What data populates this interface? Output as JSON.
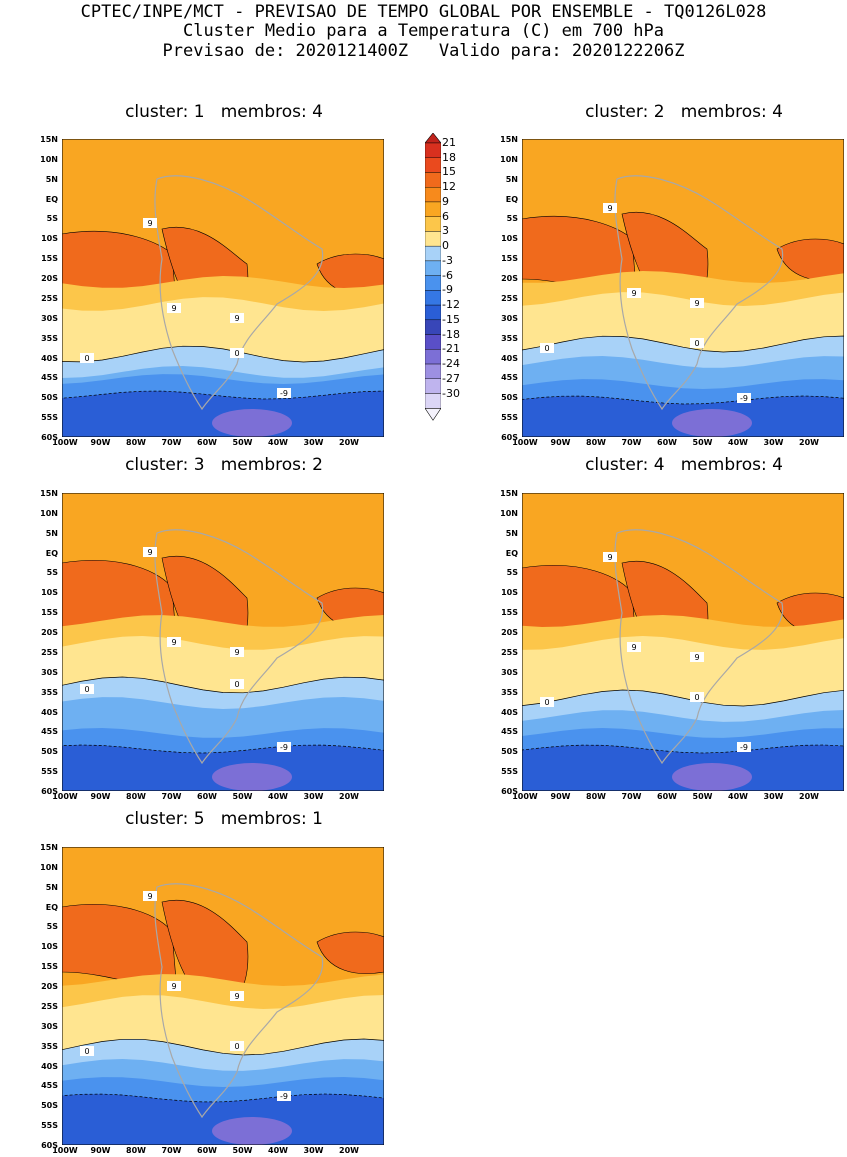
{
  "header": {
    "line1": "CPTEC/INPE/MCT - PREVISAO DE TEMPO GLOBAL POR ENSEMBLE - TQ0126L028",
    "line2": "Cluster Medio para a Temperatura (C) em 700 hPa",
    "line3": "Previsao de: 2020121400Z   Valido para: 2020122206Z"
  },
  "panels": [
    {
      "title": "cluster: 1   membros: 4"
    },
    {
      "title": "cluster: 2   membros: 4"
    },
    {
      "title": "cluster: 3   membros: 2"
    },
    {
      "title": "cluster: 4   membros: 4"
    },
    {
      "title": "cluster: 5   membros: 1"
    }
  ],
  "lat_labels": [
    "15N",
    "10N",
    "5N",
    "EQ",
    "5S",
    "10S",
    "15S",
    "20S",
    "25S",
    "30S",
    "35S",
    "40S",
    "45S",
    "50S",
    "55S",
    "60S"
  ],
  "lon_labels": [
    "100W",
    "90W",
    "80W",
    "70W",
    "60W",
    "50W",
    "40W",
    "30W",
    "20W"
  ],
  "contour_labels": {
    "nine": "9",
    "zero": "0",
    "minus_nine": "-9"
  },
  "colorbar": {
    "labels": [
      "21",
      "18",
      "15",
      "12",
      "9",
      "6",
      "3",
      "0",
      "-3",
      "-6",
      "-9",
      "-12",
      "-15",
      "-18",
      "-21",
      "-24",
      "-27",
      "-30"
    ],
    "colors": [
      "#c0231c",
      "#d8301f",
      "#ea4a1e",
      "#f06a1c",
      "#f78a1c",
      "#f9a622",
      "#fcc64a",
      "#ffe590",
      "#a8d2f8",
      "#6eb0f2",
      "#4a92ee",
      "#3577e4",
      "#2a5ed6",
      "#3846b8",
      "#5a4fc8",
      "#7c6fd6",
      "#9d90e2",
      "#bfb4ee",
      "#dcd6f6"
    ]
  },
  "chart_data": {
    "type": "heatmap",
    "variable": "Temperatura (C) em 700 hPa",
    "x_range": [
      "100W",
      "10W"
    ],
    "y_range": [
      "60S",
      "15N"
    ],
    "panels": [
      {
        "cluster": 1,
        "membros": 4
      },
      {
        "cluster": 2,
        "membros": 4
      },
      {
        "cluster": 3,
        "membros": 2
      },
      {
        "cluster": 4,
        "membros": 4
      },
      {
        "cluster": 5,
        "membros": 1
      }
    ]
  }
}
